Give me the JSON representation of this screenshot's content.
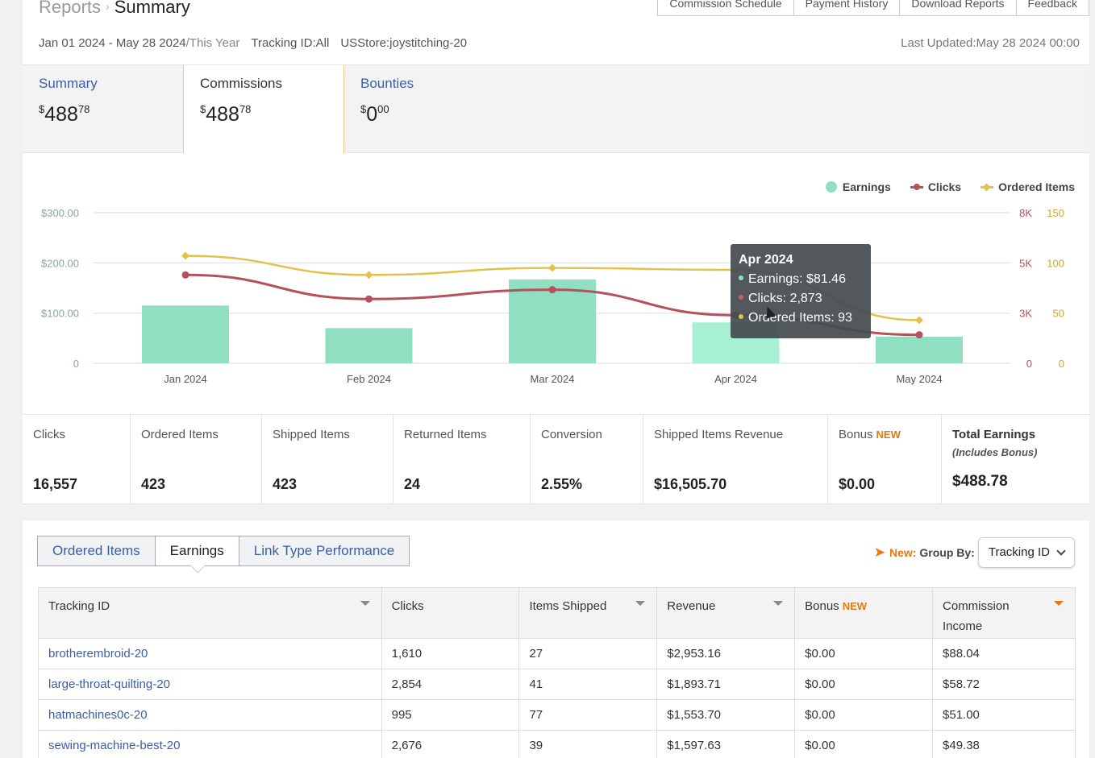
{
  "header": {
    "breadcrumb_parent": "Reports",
    "breadcrumb_current": "Summary",
    "top_tabs": [
      "Commission Schedule",
      "Payment History",
      "Download Reports",
      "Feedback"
    ],
    "date_range": "Jan 01 2024 - May 28 2024",
    "period": "/This Year",
    "tracking_id": "Tracking ID:All",
    "store": "USStore:joystitching-20",
    "last_updated": "Last Updated:May 28 2024 00:00"
  },
  "summary_tabs": [
    {
      "label": "Summary",
      "currency": "$",
      "whole": "488",
      "cents": "78"
    },
    {
      "label": "Commissions",
      "currency": "$",
      "whole": "488",
      "cents": "78"
    },
    {
      "label": "Bounties",
      "currency": "$",
      "whole": "0",
      "cents": "00"
    }
  ],
  "chart_data": {
    "type": "bar",
    "categories": [
      "Jan 2024",
      "Feb 2024",
      "Mar 2024",
      "Apr 2024",
      "May 2024"
    ],
    "series": [
      {
        "name": "Earnings",
        "type": "bar",
        "axis": "left",
        "values": [
          115,
          70,
          167,
          81.46,
          53
        ]
      },
      {
        "name": "Clicks",
        "type": "line",
        "axis": "right1",
        "values": [
          4520,
          3560,
          3930,
          2873,
          1700
        ]
      },
      {
        "name": "Ordered Items",
        "type": "line",
        "axis": "right2",
        "values": [
          107,
          88,
          95,
          93,
          43
        ]
      }
    ],
    "y_left": {
      "ticks": [
        "$300.00",
        "$200.00",
        "$100.00",
        "0"
      ],
      "range": [
        0,
        300
      ]
    },
    "y_right1": {
      "ticks": [
        "8K",
        "5K",
        "3K",
        "0"
      ]
    },
    "y_right2": {
      "ticks": [
        "150",
        "100",
        "50",
        "0"
      ],
      "range": [
        0,
        150
      ]
    },
    "legend": [
      "Earnings",
      "Clicks",
      "Ordered Items"
    ],
    "legend_position": "top-right",
    "colors": {
      "earnings": "#8fdfc0",
      "earnings_highlight": "#a8f0d4",
      "clicks": "#b5505c",
      "ordered": "#e2c24a"
    },
    "tooltip": {
      "title": "Apr 2024",
      "earnings": "Earnings: $81.46",
      "clicks": "Clicks: 2,873",
      "ordered": "Ordered Items: 93"
    }
  },
  "stats": [
    {
      "label": "Clicks",
      "value": "16,557"
    },
    {
      "label": "Ordered Items",
      "value": "423"
    },
    {
      "label": "Shipped Items",
      "value": "423"
    },
    {
      "label": "Returned Items",
      "value": "24"
    },
    {
      "label": "Conversion",
      "value": "2.55%"
    },
    {
      "label": "Shipped Items Revenue",
      "value": "$16,505.70"
    },
    {
      "label": "Bonus",
      "badge": "NEW",
      "value": "$0.00"
    },
    {
      "label": "Total Earnings",
      "sub": "(Includes Bonus)",
      "value": "$488.78"
    }
  ],
  "table_section": {
    "segments": [
      "Ordered Items",
      "Earnings",
      "Link Type Performance"
    ],
    "group_new": "New:",
    "group_label": "Group By:",
    "group_value": "Tracking ID",
    "columns": [
      "Tracking ID",
      "Clicks",
      "Items Shipped",
      "Revenue",
      "Bonus",
      "Commission Income"
    ],
    "bonus_badge": "NEW",
    "rows": [
      [
        "brotherembroid-20",
        "1,610",
        "27",
        "$2,953.16",
        "$0.00",
        "$88.04"
      ],
      [
        "large-throat-quilting-20",
        "2,854",
        "41",
        "$1,893.71",
        "$0.00",
        "$58.72"
      ],
      [
        "hatmachines0c-20",
        "995",
        "77",
        "$1,553.70",
        "$0.00",
        "$51.00"
      ],
      [
        "sewing-machine-best-20",
        "2,676",
        "39",
        "$1,597.63",
        "$0.00",
        "$49.38"
      ]
    ]
  }
}
